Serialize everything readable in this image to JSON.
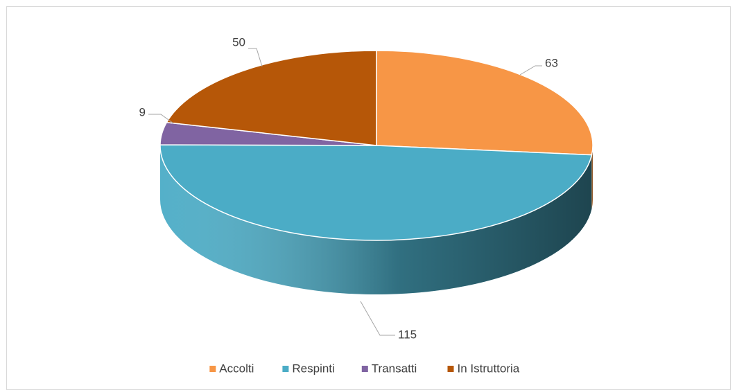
{
  "chart_data": {
    "type": "pie",
    "categories": [
      "Accolti",
      "Respinti",
      "Transatti",
      "In Istruttoria"
    ],
    "values": [
      63,
      115,
      9,
      50
    ],
    "colors": [
      "#F79646",
      "#4BACC6",
      "#8064A2",
      "#B65708"
    ],
    "legend": "bottom"
  }
}
